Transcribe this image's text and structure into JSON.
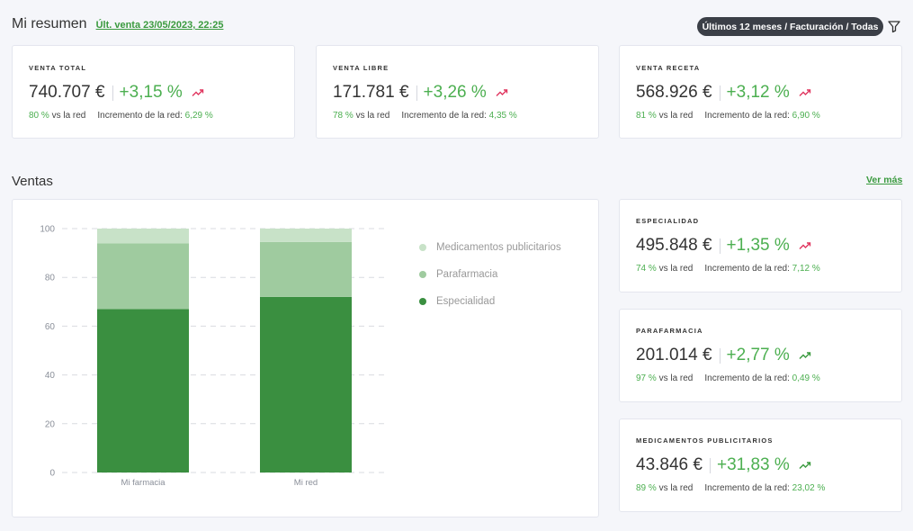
{
  "header": {
    "title": "Mi resumen",
    "last_sale": "Últ. venta 23/05/2023, 22:25",
    "filter_label": "Últimos 12 meses / Facturación / Todas"
  },
  "kpis": [
    {
      "label": "VENTA TOTAL",
      "value": "740.707 €",
      "pct": "+3,15 %",
      "trend": "up-red",
      "vs_value": "80 %",
      "vs_text": "vs la red",
      "inc_label": "Incremento de la red:",
      "inc_value": "6,29 %"
    },
    {
      "label": "VENTA LIBRE",
      "value": "171.781 €",
      "pct": "+3,26 %",
      "trend": "up-red",
      "vs_value": "78 %",
      "vs_text": "vs la red",
      "inc_label": "Incremento de la red:",
      "inc_value": "4,35 %"
    },
    {
      "label": "VENTA RECETA",
      "value": "568.926 €",
      "pct": "+3,12 %",
      "trend": "up-red",
      "vs_value": "81 %",
      "vs_text": "vs la red",
      "inc_label": "Incremento de la red:",
      "inc_value": "6,90 %"
    }
  ],
  "sales": {
    "title": "Ventas",
    "see_more": "Ver más",
    "cards": [
      {
        "label": "ESPECIALIDAD",
        "value": "495.848 €",
        "pct": "+1,35 %",
        "trend": "up-red",
        "vs_value": "74 %",
        "vs_text": "vs la red",
        "inc_label": "Incremento de la red:",
        "inc_value": "7,12 %"
      },
      {
        "label": "PARAFARMACIA",
        "value": "201.014 €",
        "pct": "+2,77 %",
        "trend": "up-green",
        "vs_value": "97 %",
        "vs_text": "vs la red",
        "inc_label": "Incremento de la red:",
        "inc_value": "0,49 %"
      },
      {
        "label": "MEDICAMENTOS PUBLICITARIOS",
        "value": "43.846 €",
        "pct": "+31,83 %",
        "trend": "up-green",
        "vs_value": "89 %",
        "vs_text": "vs la red",
        "inc_label": "Incremento de la red:",
        "inc_value": "23,02 %"
      }
    ]
  },
  "colors": {
    "accent_green": "#4caf50",
    "link_green": "#3a9a3e",
    "trend_red": "#e0365f",
    "especialidad": "#3a8f40",
    "parafarmacia": "#9fcb9f",
    "publicitarios": "#c8e2c8"
  },
  "chart_data": {
    "type": "bar",
    "stacked": true,
    "categories": [
      "Mi farmacia",
      "Mi red"
    ],
    "series": [
      {
        "name": "Especialidad",
        "values": [
          67,
          72
        ],
        "color": "#3a8f40"
      },
      {
        "name": "Parafarmacia",
        "values": [
          27,
          22.5
        ],
        "color": "#9fcb9f"
      },
      {
        "name": "Medicamentos publicitarios",
        "values": [
          6,
          5.5
        ],
        "color": "#c8e2c8"
      }
    ],
    "legend_order": [
      "Medicamentos publicitarios",
      "Parafarmacia",
      "Especialidad"
    ],
    "yticks": [
      "0",
      "20",
      "40",
      "60",
      "80",
      "100"
    ],
    "ylim": [
      0,
      100
    ],
    "grid": "dashed",
    "legend_position": "right",
    "title": "",
    "xlabel": "",
    "ylabel": ""
  }
}
